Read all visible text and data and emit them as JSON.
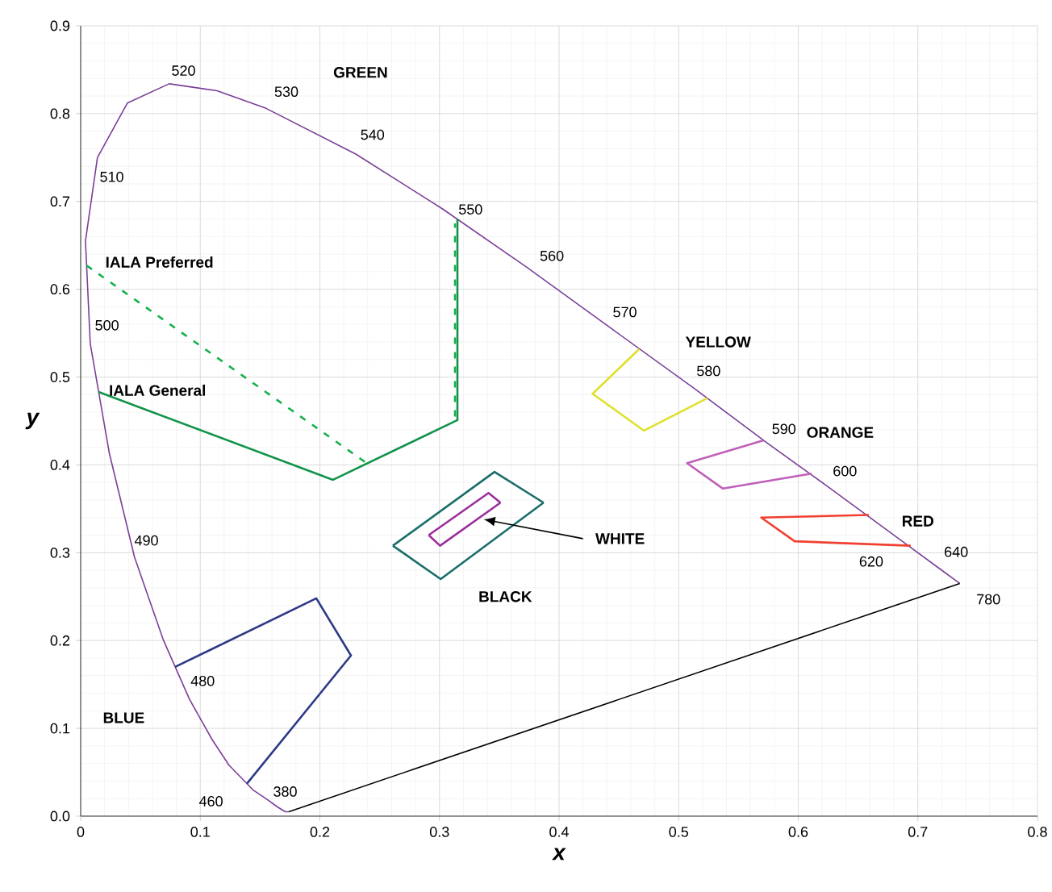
{
  "chart_data": {
    "type": "line",
    "xlabel": "x",
    "ylabel": "y",
    "xlim": [
      0,
      0.8
    ],
    "ylim": [
      0,
      0.9
    ],
    "xticks": [
      0,
      0.1,
      0.2,
      0.3,
      0.4,
      0.5,
      0.6,
      0.7,
      0.8
    ],
    "yticks": [
      {
        "value": 0,
        "label": "0.0"
      },
      0.1,
      0.2,
      0.3,
      0.4,
      0.5,
      0.6,
      0.7,
      0.8,
      0.9
    ],
    "grid": true,
    "marker": "none",
    "line_style": "solid",
    "series": [
      {
        "color": "#7b3f98",
        "x": [
          0.174,
          0.171,
          0.164,
          0.157,
          0.144,
          0.124,
          0.11,
          0.091,
          0.069,
          0.045,
          0.024,
          0.008,
          0.004,
          0.014,
          0.039,
          0.074,
          0.114,
          0.155,
          0.23,
          0.302,
          0.373,
          0.444,
          0.513,
          0.575,
          0.627,
          0.692,
          0.719,
          0.735
        ],
        "values": [
          0.005,
          0.005,
          0.011,
          0.018,
          0.03,
          0.058,
          0.087,
          0.133,
          0.201,
          0.295,
          0.413,
          0.538,
          0.655,
          0.75,
          0.812,
          0.834,
          0.826,
          0.806,
          0.754,
          0.692,
          0.625,
          0.555,
          0.487,
          0.424,
          0.373,
          0.308,
          0.281,
          0.265
        ]
      },
      {
        "color": "#000000",
        "x": [
          0.174,
          0.735
        ],
        "values": [
          0.005,
          0.265
        ]
      },
      {
        "color": "#13934a",
        "x": [
          0.015,
          0.211,
          0.315,
          0.315
        ],
        "values": [
          0.483,
          0.383,
          0.451,
          0.68
        ]
      },
      {
        "color": "#13b04a",
        "line_style": "dashed",
        "x": [
          0.005,
          0.238
        ],
        "values": [
          0.627,
          0.403
        ]
      },
      {
        "color": "#13b04a",
        "line_style": "dashed",
        "x": [
          0.313,
          0.313
        ],
        "values": [
          0.455,
          0.675
        ]
      },
      {
        "color": "#e0e030",
        "x": [
          0.467,
          0.428,
          0.471,
          0.524
        ],
        "values": [
          0.532,
          0.481,
          0.439,
          0.476
        ]
      },
      {
        "color": "#c060b8",
        "x": [
          0.571,
          0.507,
          0.537,
          0.611
        ],
        "values": [
          0.428,
          0.402,
          0.373,
          0.39
        ]
      },
      {
        "color": "#f04030",
        "x": [
          0.659,
          0.569,
          0.597,
          0.694
        ],
        "values": [
          0.343,
          0.34,
          0.313,
          0.308
        ]
      },
      {
        "color": "#2e3a87",
        "x": [
          0.079,
          0.197,
          0.226,
          0.139
        ],
        "values": [
          0.17,
          0.248,
          0.183,
          0.037
        ]
      },
      {
        "color": "#1a6e6a",
        "x": [
          0.261,
          0.346,
          0.387
        ],
        "values": [
          0.308,
          0.392,
          0.357
        ]
      },
      {
        "color": "#1a6e6a",
        "x": [
          0.261,
          0.301,
          0.387
        ],
        "values": [
          0.308,
          0.27,
          0.357
        ]
      },
      {
        "color": "#9b2f9b",
        "x": [
          0.291,
          0.341,
          0.351
        ],
        "values": [
          0.32,
          0.368,
          0.357
        ]
      },
      {
        "color": "#9b2f9b",
        "x": [
          0.291,
          0.3005,
          0.351
        ],
        "values": [
          0.32,
          0.308,
          0.357
        ]
      }
    ],
    "annotations": [
      {
        "text": "520",
        "x": 0.074,
        "y": 0.834
      },
      {
        "text": "530",
        "x": 0.155,
        "y": 0.806
      },
      {
        "text": "540",
        "x": 0.23,
        "y": 0.754
      },
      {
        "text": "550",
        "x": 0.302,
        "y": 0.692
      },
      {
        "text": "560",
        "x": 0.373,
        "y": 0.625
      },
      {
        "text": "570",
        "x": 0.444,
        "y": 0.555
      },
      {
        "text": "580",
        "x": 0.513,
        "y": 0.487
      },
      {
        "text": "590",
        "x": 0.575,
        "y": 0.424
      },
      {
        "text": "600",
        "x": 0.627,
        "y": 0.373
      },
      {
        "text": "620",
        "x": 0.692,
        "y": 0.308
      },
      {
        "text": "640",
        "x": 0.719,
        "y": 0.281
      },
      {
        "text": "780",
        "x": 0.735,
        "y": 0.265
      },
      {
        "text": "510",
        "x": 0.014,
        "y": 0.75
      },
      {
        "text": "500",
        "x": 0.008,
        "y": 0.538
      },
      {
        "text": "490",
        "x": 0.045,
        "y": 0.295
      },
      {
        "text": "480",
        "x": 0.091,
        "y": 0.133
      },
      {
        "text": "460",
        "x": 0.144,
        "y": 0.03
      },
      {
        "text": "380",
        "x": 0.174,
        "y": 0.005
      },
      "GREEN",
      "IALA Preferred",
      "IALA General",
      "YELLOW",
      "ORANGE",
      "RED",
      {
        "text": "WHITE",
        "x": 0.337,
        "y": 0.338
      },
      "BLACK",
      "BLUE"
    ]
  }
}
